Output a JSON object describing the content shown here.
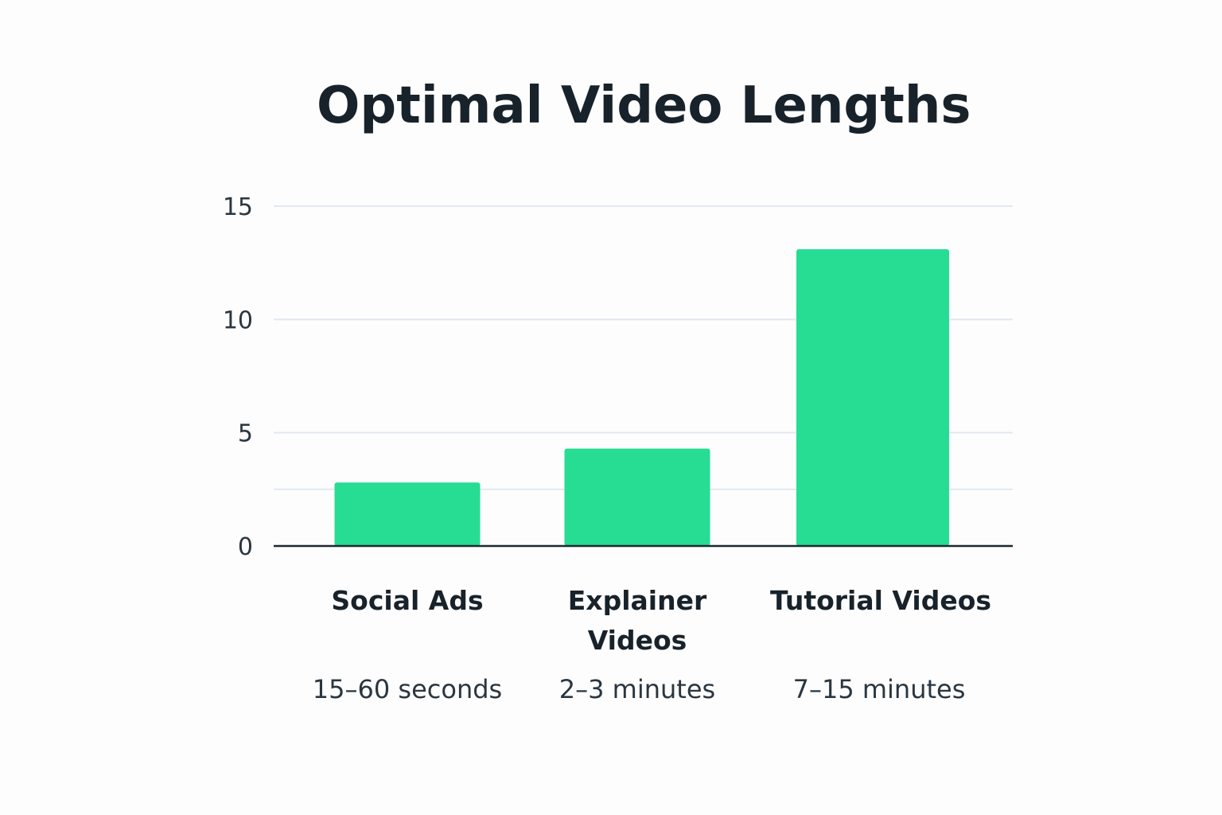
{
  "chart_data": {
    "type": "bar",
    "title": "Optimal Video Lengths",
    "xlabel": "",
    "ylabel": "",
    "ylim": [
      0,
      15
    ],
    "yticks": [
      0,
      5,
      10,
      15
    ],
    "grid_lines": [
      2.5,
      5,
      10,
      15
    ],
    "grid": true,
    "legend": "none",
    "bar_color": "#27dc93",
    "categories": [
      [
        "Social Ads"
      ],
      [
        "Explainer",
        "Videos"
      ],
      [
        "Tutorial Videos"
      ]
    ],
    "sublabels": [
      "15–60 seconds",
      "2–3 minutes",
      "7–15 minutes"
    ],
    "values": [
      2.8,
      4.3,
      13.1
    ]
  }
}
